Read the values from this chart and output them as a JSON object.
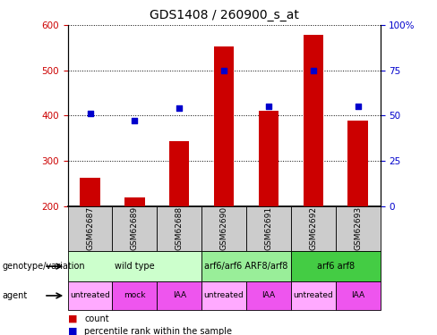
{
  "title": "GDS1408 / 260900_s_at",
  "samples": [
    "GSM62687",
    "GSM62689",
    "GSM62688",
    "GSM62690",
    "GSM62691",
    "GSM62692",
    "GSM62693"
  ],
  "counts": [
    263,
    219,
    344,
    552,
    411,
    578,
    389
  ],
  "percentile_ranks": [
    51,
    47,
    54,
    75,
    55,
    75,
    55
  ],
  "ylim_left": [
    200,
    600
  ],
  "ylim_right": [
    0,
    100
  ],
  "yticks_left": [
    200,
    300,
    400,
    500,
    600
  ],
  "yticks_right": [
    0,
    25,
    50,
    75,
    100
  ],
  "right_tick_labels": [
    "0",
    "25",
    "50",
    "75",
    "100%"
  ],
  "bar_color": "#cc0000",
  "dot_color": "#0000cc",
  "bar_bottom": 200,
  "genotype_groups": [
    {
      "label": "wild type",
      "start": 0,
      "end": 3,
      "color": "#ccffcc"
    },
    {
      "label": "arf6/arf6 ARF8/arf8",
      "start": 3,
      "end": 5,
      "color": "#99ee99"
    },
    {
      "label": "arf6 arf8",
      "start": 5,
      "end": 7,
      "color": "#44cc44"
    }
  ],
  "agent_labels": [
    "untreated",
    "mock",
    "IAA",
    "untreated",
    "IAA",
    "untreated",
    "IAA"
  ],
  "agent_color_light": "#ffaaff",
  "agent_color_dark": "#ee55ee",
  "sample_box_color": "#cccccc",
  "legend_count_color": "#cc0000",
  "legend_dot_color": "#0000cc",
  "left_label_genotype": "genotype/variation",
  "left_label_agent": "agent",
  "title_fontsize": 10,
  "axis_fontsize": 7.5,
  "sample_fontsize": 6.5,
  "geno_fontsize": 7,
  "agent_fontsize": 6.5,
  "legend_fontsize": 7
}
